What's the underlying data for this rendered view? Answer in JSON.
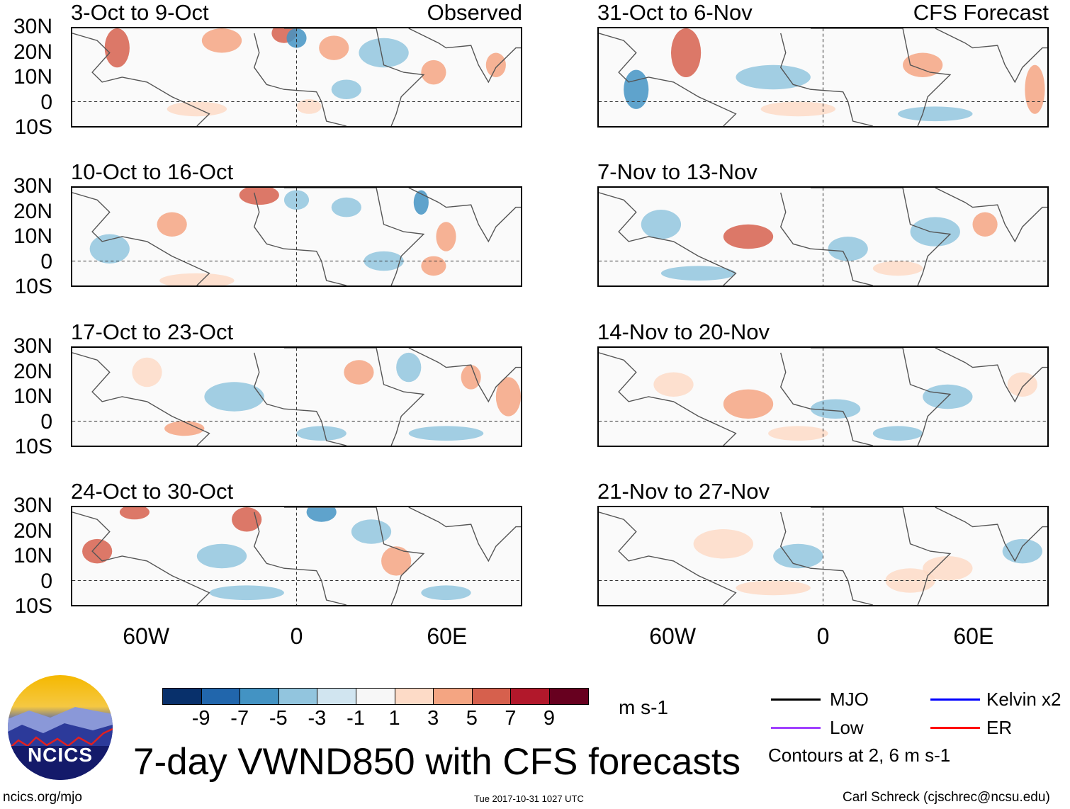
{
  "panels": [
    {
      "title": "3-Oct to 9-Oct",
      "tag": "Observed",
      "column": "left"
    },
    {
      "title": "10-Oct to 16-Oct",
      "tag": "",
      "column": "left"
    },
    {
      "title": "17-Oct to 23-Oct",
      "tag": "",
      "column": "left"
    },
    {
      "title": "24-Oct to 30-Oct",
      "tag": "",
      "column": "left"
    },
    {
      "title": "31-Oct to 6-Nov",
      "tag": "CFS Forecast",
      "column": "right"
    },
    {
      "title": "7-Nov to 13-Nov",
      "tag": "",
      "column": "right"
    },
    {
      "title": "14-Nov to 20-Nov",
      "tag": "",
      "column": "right"
    },
    {
      "title": "21-Nov to 27-Nov",
      "tag": "",
      "column": "right"
    }
  ],
  "lat_labels": [
    "30N",
    "20N",
    "10N",
    "0",
    "10S"
  ],
  "lon_labels": [
    "60W",
    "0",
    "60E"
  ],
  "colorbar": {
    "ticks": [
      "-9",
      "-7",
      "-5",
      "-3",
      "-1",
      "1",
      "3",
      "5",
      "7",
      "9"
    ],
    "colors": [
      "#08306b",
      "#2166ac",
      "#4393c3",
      "#92c5de",
      "#d1e5f0",
      "#f7f7f7",
      "#fddbc7",
      "#f4a582",
      "#d6604d",
      "#b2182b",
      "#67001f"
    ],
    "units": "m s-1"
  },
  "legend": {
    "items": [
      {
        "label": "MJO",
        "color": "#000000"
      },
      {
        "label": "Kelvin x2",
        "color": "#0000ff"
      },
      {
        "label": "Low",
        "color": "#a040ff"
      },
      {
        "label": "ER",
        "color": "#ff0000"
      }
    ],
    "note": "Contours at 2, 6 m s-1"
  },
  "title": "7-day VWND850 with CFS forecasts",
  "logo_text": "NCICS",
  "footer": {
    "url": "ncics.org/mjo",
    "timestamp": "Tue 2017-10-31 1027 UTC",
    "credit": "Carl Schreck (cjschrec@ncsu.edu)"
  }
}
